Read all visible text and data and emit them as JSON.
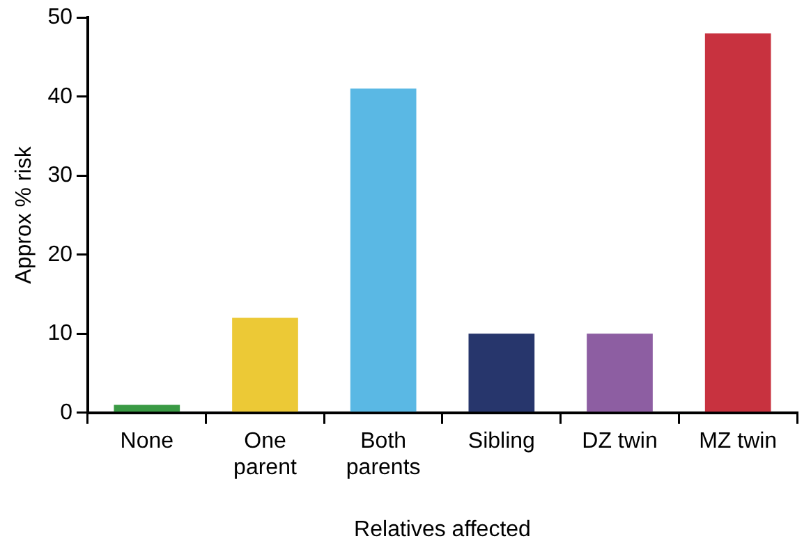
{
  "chart_data": {
    "type": "bar",
    "xlabel": "Relatives affected",
    "ylabel": "Approx % risk",
    "categories": [
      "None",
      "One parent",
      "Both parents",
      "Sibling",
      "DZ twin",
      "MZ twin"
    ],
    "values": [
      1,
      12,
      41,
      10,
      10,
      48
    ],
    "colors": [
      "#3a9a44",
      "#ecc936",
      "#5ab8e4",
      "#27366c",
      "#8d5ea2",
      "#c8323f"
    ],
    "ylim": [
      0,
      50
    ],
    "yticks": [
      0,
      10,
      20,
      30,
      40,
      50
    ],
    "grid": false,
    "legend": false
  }
}
